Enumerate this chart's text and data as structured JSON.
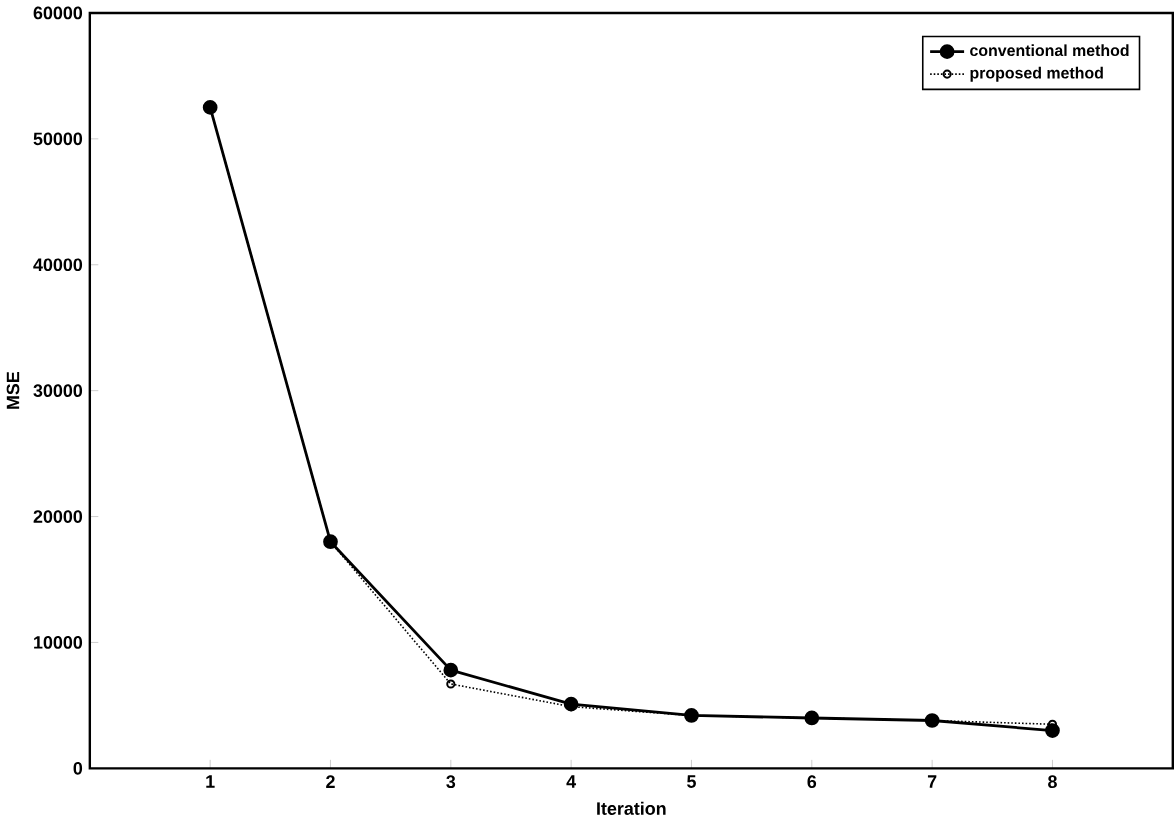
{
  "chart_data": {
    "type": "line",
    "xlabel": "Iteration",
    "ylabel": "MSE",
    "x": [
      1,
      2,
      3,
      4,
      5,
      6,
      7,
      8
    ],
    "series": [
      {
        "name": "conventional method",
        "color": "#000000",
        "marker": "circle",
        "line_style": "solid",
        "values": [
          52500,
          18000,
          7800,
          5100,
          4200,
          4000,
          3800,
          3000
        ]
      },
      {
        "name": "proposed method",
        "color": "#000000",
        "marker": "circle",
        "line_style": "dotted",
        "values": [
          52500,
          18000,
          6700,
          4900,
          4200,
          4000,
          3800,
          3500
        ]
      }
    ],
    "xlim": [
      0,
      9
    ],
    "xticks": [
      1,
      2,
      3,
      4,
      5,
      6,
      7,
      8
    ],
    "ylim": [
      0,
      60000
    ],
    "yticks": [
      0,
      10000,
      20000,
      30000,
      40000,
      50000,
      60000
    ],
    "grid": false,
    "legend": "top right"
  }
}
